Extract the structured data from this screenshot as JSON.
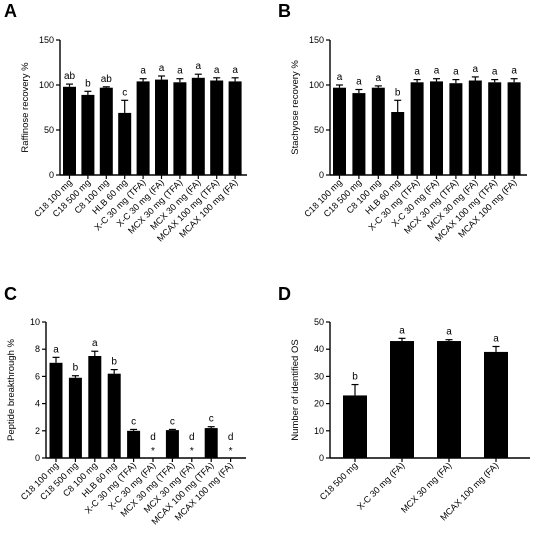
{
  "chart_data": [
    {
      "panel": "A",
      "type": "bar",
      "ylabel": "Raffinose recovery %",
      "ylim": [
        0,
        150
      ],
      "yticks": [
        "0",
        "50",
        "100",
        "150"
      ],
      "categories": [
        "C18 100 mg",
        "C18 500 mg",
        "C8 100 mg",
        "HLB 60 mg",
        "X-C 30 mg (TFA)",
        "X-C 30 mg (FA)",
        "MCX 30 mg (TFA)",
        "MCX 30 mg (FA)",
        "MCAX 100 mg (TFA)",
        "MCAX 100 mg (FA)"
      ],
      "values": [
        98,
        89,
        97,
        69,
        104,
        106,
        103,
        108,
        105,
        104
      ],
      "errors": [
        3,
        4,
        1,
        14,
        3,
        4,
        4,
        4,
        3,
        4
      ],
      "labels": [
        "ab",
        "b",
        "ab",
        "c",
        "a",
        "a",
        "a",
        "a",
        "a",
        "a"
      ]
    },
    {
      "panel": "B",
      "type": "bar",
      "ylabel": "Stachyose recovery %",
      "ylim": [
        0,
        150
      ],
      "yticks": [
        "0",
        "50",
        "100",
        "150"
      ],
      "categories": [
        "C18 100 mg",
        "C18 500 mg",
        "C8 100 mg",
        "HLB 60 mg",
        "X-C 30 mg (TFA)",
        "X-C 30 mg (FA)",
        "MCX 30 mg (TFA)",
        "MCX 30 mg (FA)",
        "MCAX 100 mg (TFA)",
        "MCAX 100 mg (FA)"
      ],
      "values": [
        97,
        91,
        97,
        70,
        103,
        104,
        102,
        105,
        103,
        103
      ],
      "errors": [
        3,
        4,
        2,
        13,
        3,
        3,
        4,
        4,
        3,
        4
      ],
      "labels": [
        "a",
        "a",
        "a",
        "b",
        "a",
        "a",
        "a",
        "a",
        "a",
        "a"
      ]
    },
    {
      "panel": "C",
      "type": "bar",
      "ylabel": "Peptide breakthrough %",
      "ylim": [
        0,
        10
      ],
      "yticks": [
        "0",
        "2",
        "4",
        "6",
        "8",
        "10"
      ],
      "categories": [
        "C18 100 mg",
        "C18 500 mg",
        "C8 100 mg",
        "HLB 60 mg",
        "X-C 30 mg (TFA)",
        "X-C 30 mg (FA)",
        "MCX 30 mg (TFA)",
        "MCX 30 mg (FA)",
        "MCAX 100 mg (TFA)",
        "MCAX 100 mg (FA)"
      ],
      "values": [
        7.0,
        5.9,
        7.5,
        6.2,
        2.0,
        0,
        2.05,
        0,
        2.2,
        0
      ],
      "errors": [
        0.4,
        0.15,
        0.35,
        0.3,
        0.1,
        0,
        0.05,
        0,
        0.1,
        0
      ],
      "labels": [
        "a",
        "b",
        "a",
        "b",
        "c",
        "d",
        "c",
        "d",
        "c",
        "d"
      ],
      "stars": [
        "",
        "",
        "",
        "",
        "",
        "*",
        "",
        "*",
        "",
        "*"
      ]
    },
    {
      "panel": "D",
      "type": "bar",
      "ylabel": "Number of identified OS",
      "ylim": [
        0,
        50
      ],
      "yticks": [
        "0",
        "10",
        "20",
        "30",
        "40",
        "50"
      ],
      "categories": [
        "C18 500 mg",
        "X-C 30 mg (FA)",
        "MCX 30 mg (FA)",
        "MCAX 100 mg (FA)"
      ],
      "values": [
        23,
        43,
        43,
        39
      ],
      "errors": [
        4,
        1,
        0.5,
        2
      ],
      "labels": [
        "b",
        "a",
        "a",
        "a"
      ]
    }
  ]
}
